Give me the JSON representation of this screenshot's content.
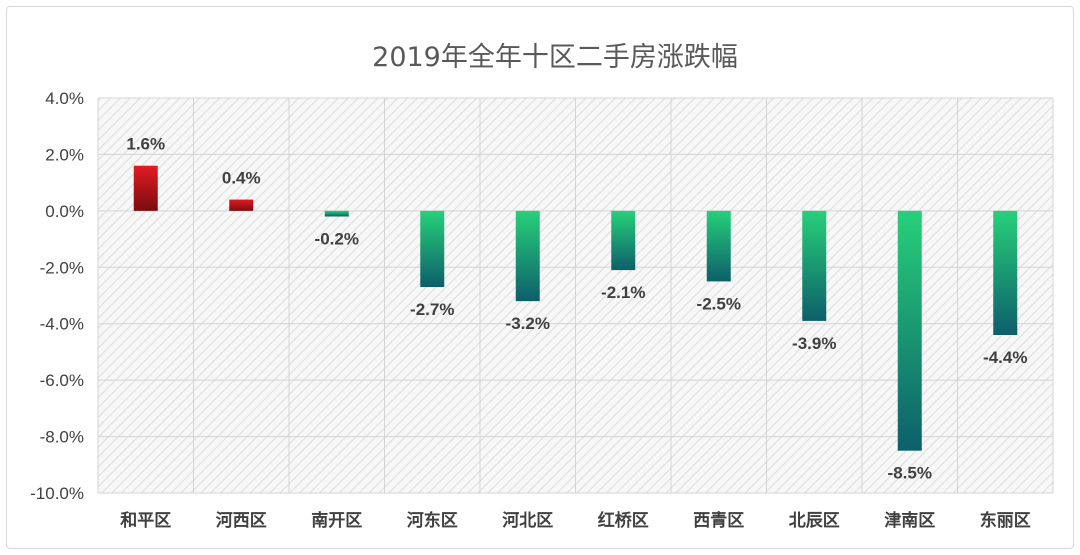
{
  "chart_data": {
    "type": "bar",
    "title": "2019年全年十区二手房涨跌幅",
    "categories": [
      "和平区",
      "河西区",
      "南开区",
      "河东区",
      "河北区",
      "红桥区",
      "西青区",
      "北辰区",
      "津南区",
      "东丽区"
    ],
    "values": [
      1.6,
      0.4,
      -0.2,
      -2.7,
      -3.2,
      -2.1,
      -2.5,
      -3.9,
      -8.5,
      -4.4
    ],
    "data_labels": [
      "1.6%",
      "0.4%",
      "-0.2%",
      "-2.7%",
      "-3.2%",
      "-2.1%",
      "-2.5%",
      "-3.9%",
      "-8.5%",
      "-4.4%"
    ],
    "y_ticks": [
      4,
      2,
      0,
      -2,
      -4,
      -6,
      -8,
      -10
    ],
    "y_tick_labels": [
      "4.0%",
      "2.0%",
      "0.0%",
      "-2.0%",
      "-4.0%",
      "-6.0%",
      "-8.0%",
      "-10.0%"
    ],
    "ylim": [
      -10,
      4
    ],
    "xlabel": "",
    "ylabel": "",
    "grid": true,
    "legend": "none",
    "colors": {
      "positive_top": "#e21b23",
      "positive_bottom": "#7a0c10",
      "negative_top": "#27d07a",
      "negative_bottom": "#0d5f6a",
      "plot_background": "#f7f7f7",
      "hatch": "#dcdcdc",
      "gridline": "#d4d4d4"
    }
  }
}
